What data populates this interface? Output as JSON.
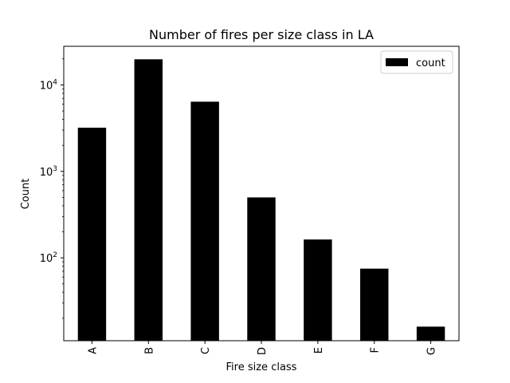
{
  "chart_data": {
    "type": "bar",
    "title": "Number of fires per size class in LA",
    "xlabel": "Fire size class",
    "ylabel": "Count",
    "yscale": "log",
    "ylim": [
      11,
      28000
    ],
    "yticks": [
      {
        "value": 100,
        "base": "10",
        "exp": "2"
      },
      {
        "value": 1000,
        "base": "10",
        "exp": "3"
      },
      {
        "value": 10000,
        "base": "10",
        "exp": "4"
      }
    ],
    "categories": [
      "A",
      "B",
      "C",
      "D",
      "E",
      "F",
      "G"
    ],
    "series": [
      {
        "name": "count",
        "color": "#000000",
        "values": [
          3200,
          19800,
          6400,
          500,
          163,
          75,
          16
        ]
      }
    ],
    "legend": {
      "position": "top-right"
    },
    "grid": false
  }
}
